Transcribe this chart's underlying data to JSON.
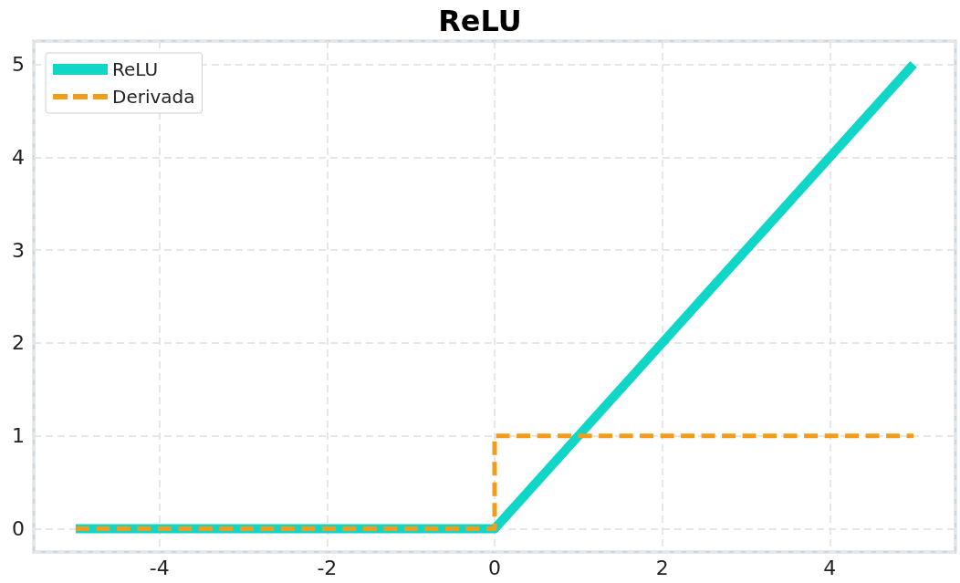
{
  "chart_data": {
    "type": "line",
    "title": "ReLU",
    "xlim": [
      -5.5,
      5.5
    ],
    "xticks": [
      -4,
      -2,
      0,
      2,
      4
    ],
    "ylim": [
      -0.25,
      5.25
    ],
    "yticks": [
      0,
      1,
      2,
      3,
      4,
      5
    ],
    "grid": true,
    "legend": "top left",
    "marker": "none",
    "series": [
      {
        "name": "ReLU",
        "color": "#0fd6c6",
        "x": [
          -5,
          0,
          5
        ],
        "values": [
          0,
          0,
          5
        ],
        "line_style": "solid"
      },
      {
        "name": "Derivada",
        "color": "#f39c1a",
        "x": [
          -5,
          0,
          0,
          5
        ],
        "values": [
          0,
          0,
          1,
          1
        ],
        "line_style": "dashed"
      }
    ]
  }
}
